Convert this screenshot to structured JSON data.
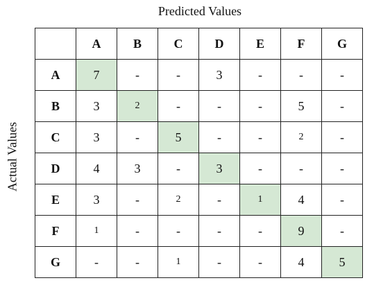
{
  "x_axis_label": "Predicted Values",
  "y_axis_label": "Actual Values",
  "columns": [
    "A",
    "B",
    "C",
    "D",
    "E",
    "F",
    "G"
  ],
  "rows": [
    {
      "label": "A",
      "cells": [
        "7",
        "-",
        "-",
        "3",
        "-",
        "-",
        "-"
      ]
    },
    {
      "label": "B",
      "cells": [
        "3",
        "2",
        "-",
        "-",
        "-",
        "5",
        "-"
      ]
    },
    {
      "label": "C",
      "cells": [
        "3",
        "-",
        "5",
        "-",
        "-",
        "2",
        "-"
      ]
    },
    {
      "label": "D",
      "cells": [
        "4",
        "3",
        "-",
        "3",
        "-",
        "-",
        "-"
      ]
    },
    {
      "label": "E",
      "cells": [
        "3",
        "-",
        "2",
        "-",
        "1",
        "4",
        "-"
      ]
    },
    {
      "label": "F",
      "cells": [
        "1",
        "-",
        "-",
        "-",
        "-",
        "9",
        "-"
      ]
    },
    {
      "label": "G",
      "cells": [
        "-",
        "-",
        "1",
        "-",
        "-",
        "4",
        "5"
      ]
    }
  ],
  "colors": {
    "diagonal_highlight": "#d5e8d4",
    "border": "#222222"
  }
}
